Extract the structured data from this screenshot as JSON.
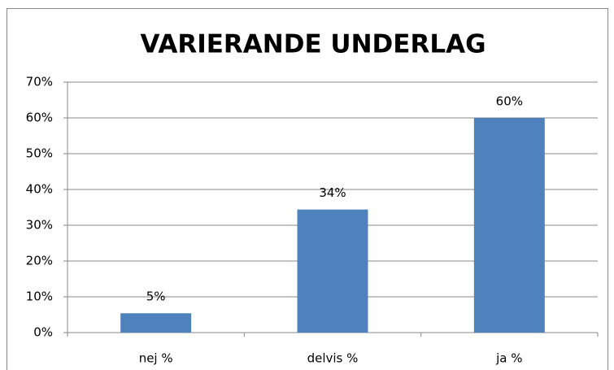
{
  "chart_data": {
    "type": "bar",
    "title": "VARIERANDE UNDERLAG",
    "categories": [
      "nej %",
      "delvis %",
      "ja %"
    ],
    "values": [
      5.4,
      34.4,
      60
    ],
    "value_labels": [
      "5%",
      "34%",
      "60%"
    ],
    "color": "#4f81bd",
    "ylim": [
      0,
      70
    ],
    "yticks": [
      {
        "value": 0,
        "label": "0%"
      },
      {
        "value": 10,
        "label": "10%"
      },
      {
        "value": 20,
        "label": "20%"
      },
      {
        "value": 30,
        "label": "30%"
      },
      {
        "value": 40,
        "label": "40%"
      },
      {
        "value": 50,
        "label": "50%"
      },
      {
        "value": 60,
        "label": "60%"
      },
      {
        "value": 70,
        "label": "70%"
      }
    ],
    "grid": true
  }
}
